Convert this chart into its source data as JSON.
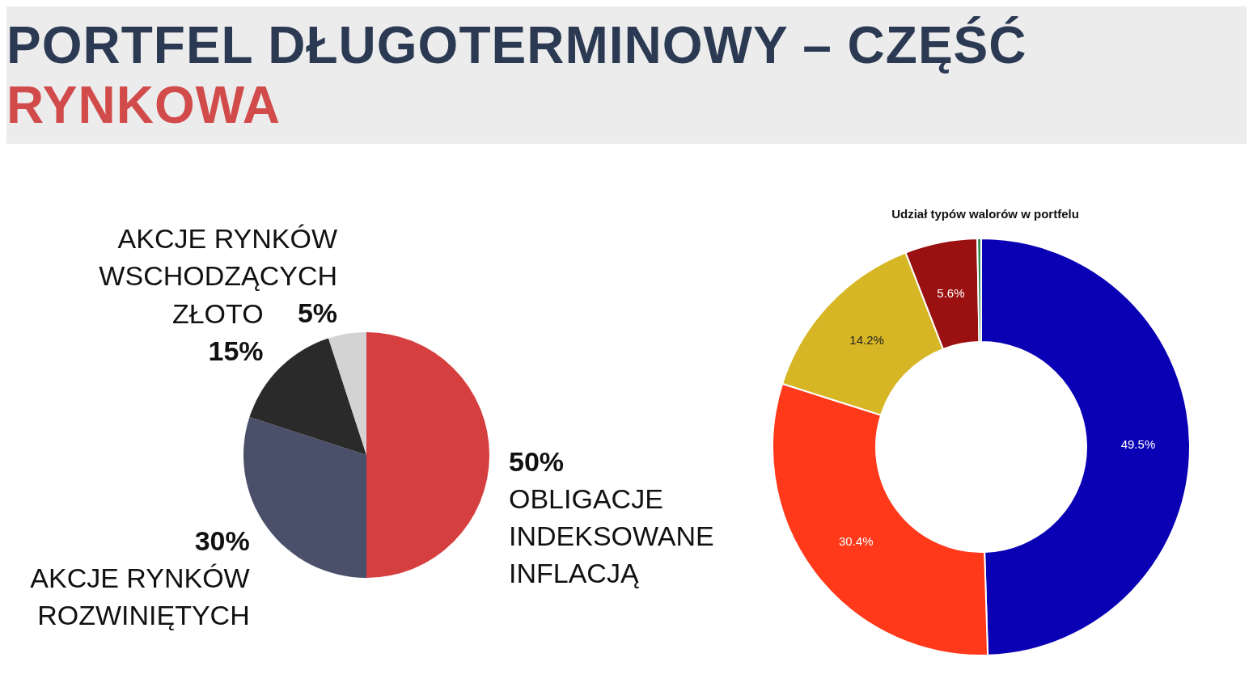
{
  "chart_data": [
    {
      "type": "pie",
      "title": "PORTFEL DŁUGOTERMINOWY – CZĘŚĆ RYNKOWA",
      "categories": [
        "OBLIGACJE INDEKSOWANE INFLACJĄ",
        "AKCJE RYNKÓW ROZWINIĘTYCH",
        "ZŁOTO",
        "AKCJE RYNKÓW WSCHODZĄCYCH"
      ],
      "values": [
        50,
        30,
        15,
        5
      ],
      "colors": [
        "#d63f3f",
        "#4a506a",
        "#2a2a2a",
        "#d3d3d3"
      ],
      "value_labels": [
        "50%",
        "30%",
        "15%",
        "5%"
      ]
    },
    {
      "type": "donut",
      "title": "Udział typów walorów w portfelu",
      "categories": [
        null,
        null,
        null,
        null,
        null
      ],
      "values": [
        49.5,
        30.4,
        14.2,
        5.6,
        0.3
      ],
      "colors": [
        "#0a00b4",
        "#ff391a",
        "#d7b625",
        "#9b1010",
        "#2e8b57"
      ],
      "value_labels": [
        "49.5%",
        "30.4%",
        "14.2%",
        "5.6%",
        null
      ]
    }
  ]
}
